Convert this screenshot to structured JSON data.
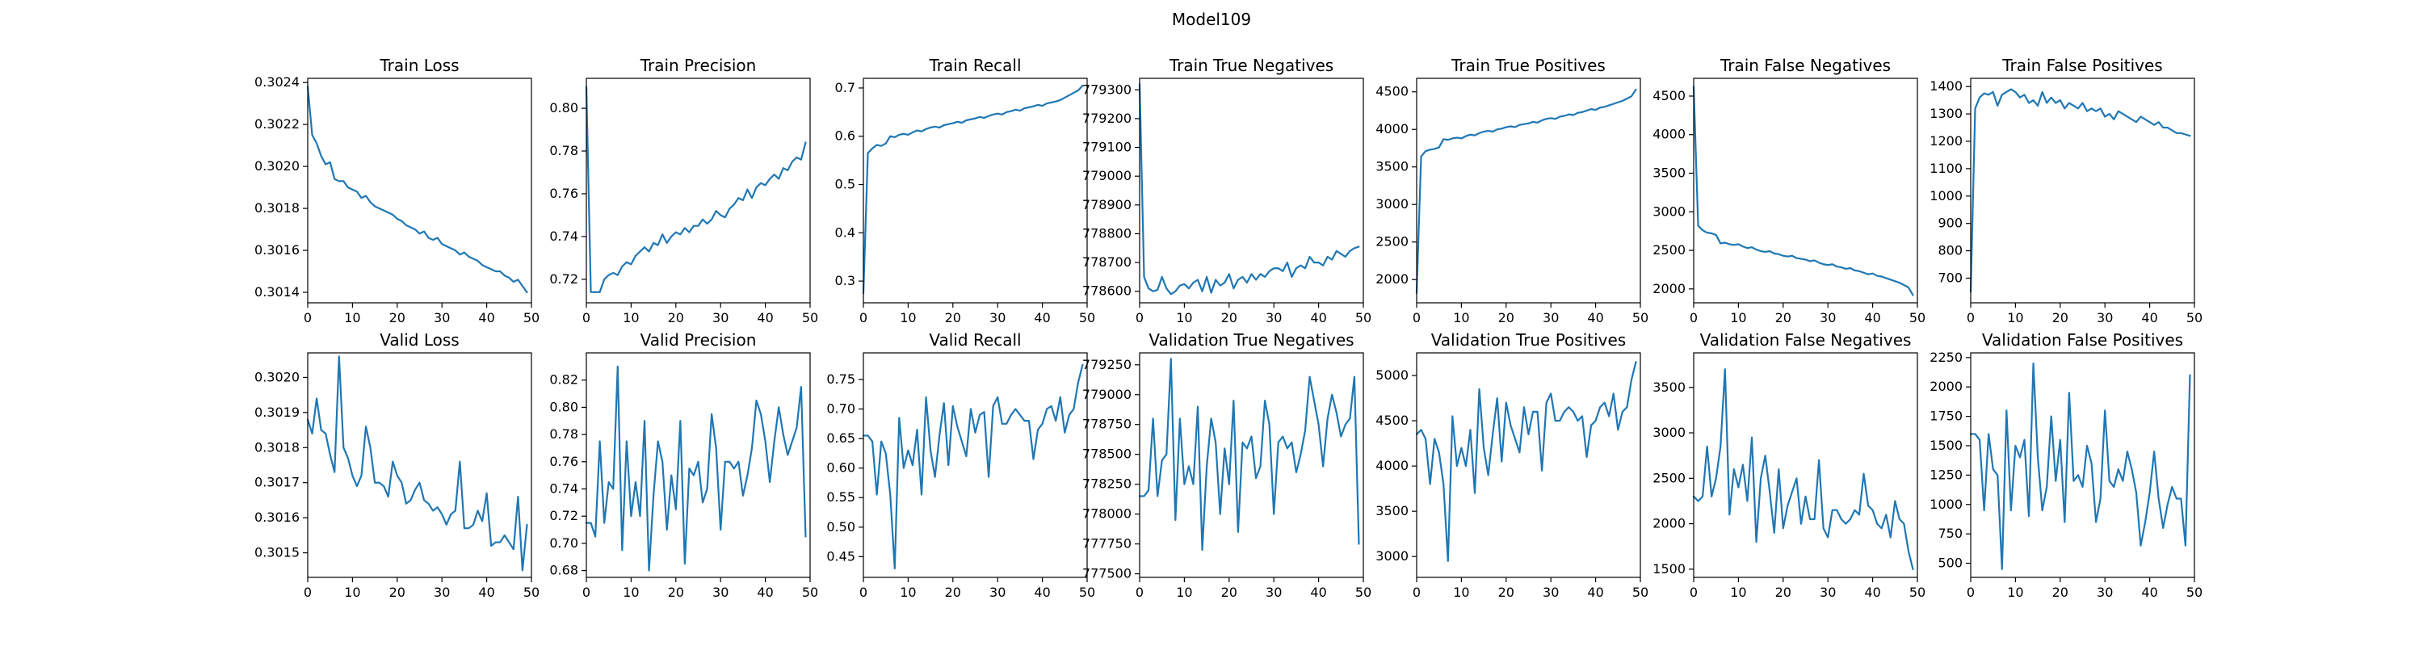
{
  "figure": {
    "title": "Model109"
  },
  "colors": {
    "line": "#1f77b4",
    "axes": "#000000",
    "background": "#ffffff"
  },
  "chart_data": [
    {
      "type": "line",
      "title": "Train Loss",
      "xlim": [
        0,
        50
      ],
      "ylim": [
        0.30135,
        0.30242
      ],
      "xticks": [
        0,
        10,
        20,
        30,
        40,
        50
      ],
      "yticks": [
        0.3014,
        0.3016,
        0.3018,
        0.302,
        0.3022,
        0.3024
      ],
      "ytick_labels": [
        "0.3014",
        "0.3016",
        "0.3018",
        "0.3020",
        "0.3022",
        "0.3024"
      ],
      "y": [
        0.30238,
        0.30215,
        0.30211,
        0.30205,
        0.30201,
        0.30202,
        0.30194,
        0.30193,
        0.30193,
        0.3019,
        0.30189,
        0.30188,
        0.30185,
        0.30186,
        0.30183,
        0.30181,
        0.3018,
        0.30179,
        0.30178,
        0.30177,
        0.30175,
        0.30174,
        0.30172,
        0.30171,
        0.3017,
        0.30168,
        0.30169,
        0.30166,
        0.30165,
        0.30166,
        0.30163,
        0.30162,
        0.30161,
        0.3016,
        0.30158,
        0.30159,
        0.30157,
        0.30156,
        0.30155,
        0.30153,
        0.30152,
        0.30151,
        0.3015,
        0.3015,
        0.30148,
        0.30147,
        0.30145,
        0.30146,
        0.30143,
        0.3014
      ]
    },
    {
      "type": "line",
      "title": "Train Precision",
      "xlim": [
        0,
        50
      ],
      "ylim": [
        0.709,
        0.814
      ],
      "xticks": [
        0,
        10,
        20,
        30,
        40,
        50
      ],
      "yticks": [
        0.72,
        0.74,
        0.76,
        0.78,
        0.8
      ],
      "ytick_labels": [
        "0.72",
        "0.74",
        "0.76",
        "0.78",
        "0.80"
      ],
      "y": [
        0.81,
        0.714,
        0.714,
        0.714,
        0.72,
        0.722,
        0.723,
        0.722,
        0.726,
        0.728,
        0.727,
        0.731,
        0.733,
        0.735,
        0.733,
        0.737,
        0.736,
        0.741,
        0.737,
        0.74,
        0.742,
        0.741,
        0.744,
        0.742,
        0.745,
        0.745,
        0.748,
        0.746,
        0.748,
        0.752,
        0.75,
        0.749,
        0.753,
        0.755,
        0.758,
        0.757,
        0.762,
        0.758,
        0.763,
        0.765,
        0.764,
        0.767,
        0.769,
        0.767,
        0.772,
        0.771,
        0.775,
        0.777,
        0.776,
        0.784
      ]
    },
    {
      "type": "line",
      "title": "Train Recall",
      "xlim": [
        0,
        50
      ],
      "ylim": [
        0.255,
        0.72
      ],
      "xticks": [
        0,
        10,
        20,
        30,
        40,
        50
      ],
      "yticks": [
        0.3,
        0.4,
        0.5,
        0.6,
        0.7
      ],
      "ytick_labels": [
        "0.3",
        "0.4",
        "0.5",
        "0.6",
        "0.7"
      ],
      "y": [
        0.275,
        0.565,
        0.575,
        0.582,
        0.58,
        0.585,
        0.6,
        0.598,
        0.603,
        0.605,
        0.603,
        0.608,
        0.612,
        0.61,
        0.615,
        0.618,
        0.62,
        0.618,
        0.623,
        0.625,
        0.627,
        0.63,
        0.628,
        0.633,
        0.635,
        0.637,
        0.64,
        0.638,
        0.642,
        0.645,
        0.647,
        0.645,
        0.65,
        0.652,
        0.655,
        0.653,
        0.658,
        0.66,
        0.662,
        0.665,
        0.663,
        0.668,
        0.67,
        0.672,
        0.675,
        0.68,
        0.685,
        0.69,
        0.695,
        0.705
      ]
    },
    {
      "type": "line",
      "title": "Train True Negatives",
      "xlim": [
        0,
        50
      ],
      "ylim": [
        778560,
        779340
      ],
      "xticks": [
        0,
        10,
        20,
        30,
        40,
        50
      ],
      "yticks": [
        778600,
        778700,
        778800,
        778900,
        779000,
        779100,
        779200,
        779300
      ],
      "ytick_labels": [
        "778600",
        "778700",
        "778800",
        "778900",
        "779000",
        "779100",
        "779200",
        "779300"
      ],
      "y": [
        779320,
        778650,
        778610,
        778600,
        778605,
        778650,
        778610,
        778590,
        778600,
        778620,
        778625,
        778610,
        778630,
        778640,
        778600,
        778650,
        778595,
        778640,
        778620,
        778630,
        778660,
        778610,
        778640,
        778650,
        778630,
        778660,
        778640,
        778660,
        778650,
        778670,
        778680,
        778680,
        778670,
        778700,
        778650,
        778680,
        778690,
        778680,
        778720,
        778700,
        778700,
        778690,
        778720,
        778710,
        778740,
        778730,
        778720,
        778740,
        778750,
        778755
      ]
    },
    {
      "type": "line",
      "title": "Train True Positives",
      "xlim": [
        0,
        50
      ],
      "ylim": [
        1690,
        4680
      ],
      "xticks": [
        0,
        10,
        20,
        30,
        40,
        50
      ],
      "yticks": [
        2000,
        2500,
        3000,
        3500,
        4000,
        4500
      ],
      "ytick_labels": [
        "2000",
        "2500",
        "3000",
        "3500",
        "4000",
        "4500"
      ],
      "y": [
        1820,
        3640,
        3710,
        3730,
        3740,
        3760,
        3870,
        3860,
        3880,
        3890,
        3880,
        3910,
        3930,
        3920,
        3950,
        3970,
        3980,
        3970,
        4000,
        4010,
        4030,
        4040,
        4030,
        4060,
        4070,
        4080,
        4100,
        4090,
        4120,
        4140,
        4150,
        4140,
        4170,
        4180,
        4200,
        4190,
        4220,
        4230,
        4250,
        4270,
        4260,
        4290,
        4300,
        4320,
        4340,
        4360,
        4380,
        4410,
        4440,
        4530
      ]
    },
    {
      "type": "line",
      "title": "Train False Negatives",
      "xlim": [
        0,
        50
      ],
      "ylim": [
        1820,
        4730
      ],
      "xticks": [
        0,
        10,
        20,
        30,
        40,
        50
      ],
      "yticks": [
        2000,
        2500,
        3000,
        3500,
        4000,
        4500
      ],
      "ytick_labels": [
        "2000",
        "2500",
        "3000",
        "3500",
        "4000",
        "4500"
      ],
      "y": [
        4620,
        2820,
        2760,
        2730,
        2720,
        2700,
        2590,
        2600,
        2580,
        2570,
        2580,
        2550,
        2530,
        2540,
        2510,
        2490,
        2480,
        2490,
        2460,
        2450,
        2430,
        2420,
        2430,
        2400,
        2390,
        2380,
        2360,
        2370,
        2340,
        2320,
        2310,
        2320,
        2290,
        2280,
        2260,
        2270,
        2240,
        2230,
        2210,
        2190,
        2200,
        2170,
        2160,
        2140,
        2120,
        2100,
        2080,
        2050,
        2020,
        1920
      ]
    },
    {
      "type": "line",
      "title": "Train False Positives",
      "xlim": [
        0,
        50
      ],
      "ylim": [
        610,
        1430
      ],
      "xticks": [
        0,
        10,
        20,
        30,
        40,
        50
      ],
      "yticks": [
        700,
        800,
        900,
        1000,
        1100,
        1200,
        1300,
        1400
      ],
      "ytick_labels": [
        "700",
        "800",
        "900",
        "1000",
        "1100",
        "1200",
        "1300",
        "1400"
      ],
      "y": [
        650,
        1320,
        1360,
        1375,
        1370,
        1380,
        1330,
        1370,
        1380,
        1390,
        1380,
        1360,
        1370,
        1340,
        1350,
        1330,
        1380,
        1340,
        1360,
        1340,
        1350,
        1320,
        1340,
        1330,
        1320,
        1340,
        1310,
        1320,
        1310,
        1320,
        1290,
        1300,
        1280,
        1310,
        1300,
        1290,
        1280,
        1270,
        1290,
        1280,
        1270,
        1260,
        1270,
        1250,
        1250,
        1240,
        1230,
        1230,
        1225,
        1220
      ]
    },
    {
      "type": "line",
      "title": "Valid Loss",
      "xlim": [
        0,
        50
      ],
      "ylim": [
        0.30143,
        0.30207
      ],
      "xticks": [
        0,
        10,
        20,
        30,
        40,
        50
      ],
      "yticks": [
        0.3015,
        0.3016,
        0.3017,
        0.3018,
        0.3019,
        0.302
      ],
      "ytick_labels": [
        "0.3015",
        "0.3016",
        "0.3017",
        "0.3018",
        "0.3019",
        "0.3020"
      ],
      "y": [
        0.30188,
        0.30184,
        0.30194,
        0.30185,
        0.30184,
        0.30178,
        0.30173,
        0.30206,
        0.3018,
        0.30177,
        0.30172,
        0.30169,
        0.30172,
        0.30186,
        0.3018,
        0.3017,
        0.3017,
        0.30169,
        0.30166,
        0.30176,
        0.30172,
        0.3017,
        0.30164,
        0.30165,
        0.30168,
        0.3017,
        0.30165,
        0.30164,
        0.30162,
        0.30163,
        0.30161,
        0.30158,
        0.30161,
        0.30162,
        0.30176,
        0.30157,
        0.30157,
        0.30158,
        0.30162,
        0.30159,
        0.30167,
        0.30152,
        0.30153,
        0.30153,
        0.30155,
        0.30153,
        0.30151,
        0.30166,
        0.30145,
        0.30158
      ]
    },
    {
      "type": "line",
      "title": "Valid Precision",
      "xlim": [
        0,
        50
      ],
      "ylim": [
        0.675,
        0.84
      ],
      "xticks": [
        0,
        10,
        20,
        30,
        40,
        50
      ],
      "yticks": [
        0.68,
        0.7,
        0.72,
        0.74,
        0.76,
        0.78,
        0.8,
        0.82
      ],
      "ytick_labels": [
        "0.68",
        "0.70",
        "0.72",
        "0.74",
        "0.76",
        "0.78",
        "0.80",
        "0.82"
      ],
      "y": [
        0.715,
        0.715,
        0.705,
        0.775,
        0.715,
        0.745,
        0.74,
        0.83,
        0.695,
        0.775,
        0.72,
        0.745,
        0.72,
        0.79,
        0.68,
        0.735,
        0.775,
        0.76,
        0.71,
        0.75,
        0.725,
        0.79,
        0.685,
        0.755,
        0.75,
        0.76,
        0.73,
        0.74,
        0.795,
        0.77,
        0.71,
        0.76,
        0.76,
        0.755,
        0.76,
        0.735,
        0.75,
        0.77,
        0.805,
        0.795,
        0.775,
        0.745,
        0.775,
        0.8,
        0.78,
        0.765,
        0.775,
        0.785,
        0.815,
        0.705
      ]
    },
    {
      "type": "line",
      "title": "Valid Recall",
      "xlim": [
        0,
        50
      ],
      "ylim": [
        0.415,
        0.795
      ],
      "xticks": [
        0,
        10,
        20,
        30,
        40,
        50
      ],
      "yticks": [
        0.45,
        0.5,
        0.55,
        0.6,
        0.65,
        0.7,
        0.75
      ],
      "ytick_labels": [
        "0.45",
        "0.50",
        "0.55",
        "0.60",
        "0.65",
        "0.70",
        "0.75"
      ],
      "y": [
        0.655,
        0.655,
        0.645,
        0.555,
        0.645,
        0.625,
        0.555,
        0.43,
        0.685,
        0.6,
        0.63,
        0.605,
        0.665,
        0.555,
        0.72,
        0.63,
        0.585,
        0.655,
        0.71,
        0.605,
        0.705,
        0.67,
        0.645,
        0.62,
        0.7,
        0.66,
        0.69,
        0.695,
        0.585,
        0.705,
        0.72,
        0.675,
        0.675,
        0.69,
        0.7,
        0.69,
        0.68,
        0.68,
        0.615,
        0.665,
        0.675,
        0.7,
        0.705,
        0.68,
        0.72,
        0.66,
        0.69,
        0.7,
        0.745,
        0.775
      ]
    },
    {
      "type": "line",
      "title": "Validation True Negatives",
      "xlim": [
        0,
        50
      ],
      "ylim": [
        777470,
        779350
      ],
      "xticks": [
        0,
        10,
        20,
        30,
        40,
        50
      ],
      "yticks": [
        777500,
        777750,
        778000,
        778250,
        778500,
        778750,
        779000,
        779250
      ],
      "ytick_labels": [
        "777500",
        "777750",
        "778000",
        "778250",
        "778500",
        "778750",
        "779000",
        "779250"
      ],
      "y": [
        778150,
        778150,
        778200,
        778800,
        778150,
        778450,
        778500,
        779300,
        777950,
        778800,
        778250,
        778400,
        778250,
        778900,
        777700,
        778400,
        778800,
        778600,
        778000,
        778550,
        778250,
        778950,
        777850,
        778600,
        778550,
        778650,
        778300,
        778400,
        778950,
        778750,
        778000,
        778600,
        778650,
        778550,
        778600,
        778350,
        778500,
        778700,
        779150,
        778950,
        778750,
        778400,
        778800,
        779000,
        778850,
        778650,
        778750,
        778800,
        779150,
        777750
      ]
    },
    {
      "type": "line",
      "title": "Validation True Positives",
      "xlim": [
        0,
        50
      ],
      "ylim": [
        2770,
        5250
      ],
      "xticks": [
        0,
        10,
        20,
        30,
        40,
        50
      ],
      "yticks": [
        3000,
        3500,
        4000,
        4500,
        5000
      ],
      "ytick_labels": [
        "3000",
        "3500",
        "4000",
        "4500",
        "5000"
      ],
      "y": [
        4350,
        4400,
        4300,
        3800,
        4300,
        4150,
        3800,
        2950,
        4550,
        4000,
        4200,
        4000,
        4400,
        3700,
        4850,
        4200,
        3900,
        4350,
        4750,
        4050,
        4700,
        4450,
        4300,
        4150,
        4650,
        4350,
        4600,
        4600,
        3950,
        4700,
        4800,
        4500,
        4500,
        4600,
        4650,
        4600,
        4500,
        4550,
        4100,
        4450,
        4500,
        4650,
        4700,
        4550,
        4800,
        4400,
        4600,
        4650,
        4950,
        5150
      ]
    },
    {
      "type": "line",
      "title": "Validation False Negatives",
      "xlim": [
        0,
        50
      ],
      "ylim": [
        1410,
        3880
      ],
      "xticks": [
        0,
        10,
        20,
        30,
        40,
        50
      ],
      "yticks": [
        1500,
        2000,
        2500,
        3000,
        3500
      ],
      "ytick_labels": [
        "1500",
        "2000",
        "2500",
        "3000",
        "3500"
      ],
      "y": [
        2300,
        2250,
        2300,
        2850,
        2300,
        2500,
        2850,
        3700,
        2100,
        2600,
        2400,
        2650,
        2250,
        2950,
        1800,
        2500,
        2750,
        2350,
        1900,
        2600,
        1950,
        2200,
        2350,
        2500,
        2000,
        2300,
        2050,
        2050,
        2700,
        1950,
        1850,
        2150,
        2150,
        2050,
        2000,
        2050,
        2150,
        2100,
        2550,
        2200,
        2150,
        2000,
        1950,
        2100,
        1850,
        2250,
        2050,
        2000,
        1700,
        1500
      ]
    },
    {
      "type": "line",
      "title": "Validation False Positives",
      "xlim": [
        0,
        50
      ],
      "ylim": [
        380,
        2290
      ],
      "xticks": [
        0,
        10,
        20,
        30,
        40,
        50
      ],
      "yticks": [
        500,
        750,
        1000,
        1250,
        1500,
        1750,
        2000,
        2250
      ],
      "ytick_labels": [
        "500",
        "750",
        "1000",
        "1250",
        "1500",
        "1750",
        "2000",
        "2250"
      ],
      "y": [
        1600,
        1600,
        1550,
        950,
        1600,
        1300,
        1250,
        450,
        1800,
        950,
        1500,
        1400,
        1550,
        900,
        2200,
        1400,
        950,
        1150,
        1750,
        1200,
        1550,
        850,
        1950,
        1200,
        1250,
        1150,
        1500,
        1350,
        850,
        1050,
        1800,
        1200,
        1150,
        1300,
        1200,
        1450,
        1300,
        1100,
        650,
        850,
        1100,
        1450,
        1050,
        800,
        1000,
        1150,
        1050,
        1050,
        650,
        2100
      ]
    }
  ]
}
